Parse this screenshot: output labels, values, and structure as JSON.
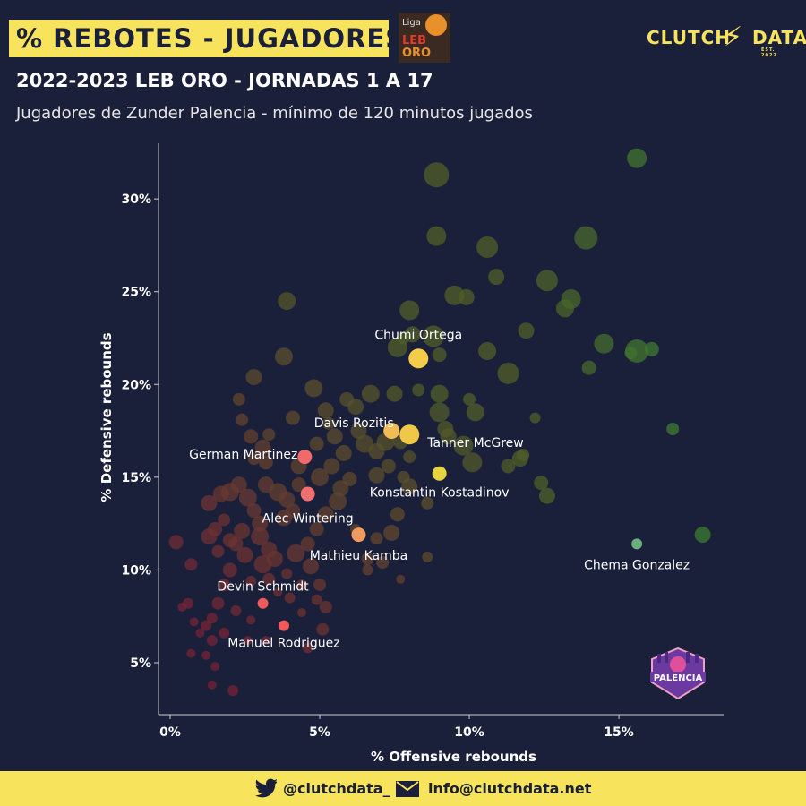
{
  "header": {
    "title": "% REBOTES - JUGADORES",
    "subtitle": "2022-2023 LEB ORO - JORNADAS 1 A 17",
    "description": "Jugadores de Zunder Palencia - mínimo de 120 minutos jugados",
    "league_logo": {
      "l1": "Liga",
      "l2": "LEB",
      "l3": "ORO"
    },
    "brand": {
      "left": "CLUTCH",
      "right": "DATA",
      "est": "EST. 2022"
    }
  },
  "footer": {
    "twitter": "@clutchdata_",
    "email": "info@clutchdata.net"
  },
  "team_logo": {
    "text": "PALENCIA"
  },
  "chart_data": {
    "type": "scatter",
    "xlabel": "% Offensive rebounds",
    "ylabel": "% Defensive rebounds",
    "xlim": [
      0,
      18.5
    ],
    "ylim": [
      2.2,
      33
    ],
    "x_ticks": [
      0,
      5,
      10,
      15
    ],
    "x_tick_labels": [
      "0%",
      "5%",
      "10%",
      "15%"
    ],
    "y_ticks": [
      5,
      10,
      15,
      20,
      25,
      30
    ],
    "y_tick_labels": [
      "5%",
      "10%",
      "15%",
      "20%",
      "25%",
      "30%"
    ],
    "grid": false,
    "highlighted": [
      {
        "name": "Chumi Ortega",
        "x": 8.3,
        "y": 21.4,
        "color": "#f2cc4a",
        "size": 11
      },
      {
        "name": "Davis Rozitis",
        "x": 7.4,
        "y": 17.5,
        "color": "#f2bc55",
        "size": 9
      },
      {
        "name": "Tanner McGrew",
        "x": 8.0,
        "y": 17.3,
        "color": "#f0c848",
        "size": 11
      },
      {
        "name": "German Martinez",
        "x": 4.5,
        "y": 16.1,
        "color": "#f06a6a",
        "size": 8
      },
      {
        "name": "Konstantin Kostadinov",
        "x": 9.0,
        "y": 15.2,
        "color": "#e8d440",
        "size": 8
      },
      {
        "name": "Alec Wintering",
        "x": 4.6,
        "y": 14.1,
        "color": "#f07070",
        "size": 8
      },
      {
        "name": "Mathieu Kamba",
        "x": 6.3,
        "y": 11.9,
        "color": "#f09a62",
        "size": 8
      },
      {
        "name": "Chema Gonzalez",
        "x": 15.6,
        "y": 11.4,
        "color": "#6ab07a",
        "size": 6
      },
      {
        "name": "Devin Schmidt",
        "x": 3.1,
        "y": 8.2,
        "color": "#f05a5a",
        "size": 6
      },
      {
        "name": "Manuel Rodriguez",
        "x": 3.8,
        "y": 7.0,
        "color": "#f05a5a",
        "size": 6
      }
    ],
    "others": [
      [
        15.6,
        32.2,
        11
      ],
      [
        8.9,
        31.3,
        14
      ],
      [
        8.9,
        28.0,
        11
      ],
      [
        10.6,
        27.4,
        12
      ],
      [
        13.9,
        27.9,
        13
      ],
      [
        10.9,
        25.8,
        9
      ],
      [
        12.6,
        25.6,
        12
      ],
      [
        13.4,
        24.6,
        11
      ],
      [
        13.2,
        24.1,
        10
      ],
      [
        9.5,
        24.8,
        11
      ],
      [
        9.9,
        24.7,
        9
      ],
      [
        8.0,
        24.0,
        11
      ],
      [
        8.8,
        22.6,
        12
      ],
      [
        8.1,
        22.7,
        9
      ],
      [
        7.8,
        22.5,
        7
      ],
      [
        7.6,
        22.0,
        11
      ],
      [
        9.0,
        21.6,
        8
      ],
      [
        10.6,
        21.8,
        10
      ],
      [
        11.9,
        22.9,
        9
      ],
      [
        14.5,
        22.2,
        11
      ],
      [
        15.6,
        21.8,
        13
      ],
      [
        16.1,
        21.9,
        8
      ],
      [
        15.4,
        21.7,
        7
      ],
      [
        14.0,
        20.9,
        8
      ],
      [
        11.3,
        20.6,
        12
      ],
      [
        3.9,
        24.5,
        10
      ],
      [
        3.8,
        21.5,
        10
      ],
      [
        2.8,
        20.4,
        9
      ],
      [
        4.8,
        19.8,
        10
      ],
      [
        5.2,
        18.6,
        9
      ],
      [
        5.9,
        19.2,
        8
      ],
      [
        6.2,
        18.8,
        9
      ],
      [
        6.7,
        19.5,
        10
      ],
      [
        7.5,
        19.5,
        9
      ],
      [
        8.3,
        19.7,
        7
      ],
      [
        9.0,
        19.5,
        10
      ],
      [
        10.0,
        19.2,
        7
      ],
      [
        10.2,
        18.5,
        10
      ],
      [
        9.2,
        17.6,
        9
      ],
      [
        9.0,
        18.5,
        11
      ],
      [
        9.3,
        17.2,
        9
      ],
      [
        9.8,
        16.7,
        11
      ],
      [
        10.1,
        15.8,
        11
      ],
      [
        11.3,
        15.6,
        8
      ],
      [
        11.7,
        16.0,
        9
      ],
      [
        11.8,
        16.2,
        7
      ],
      [
        12.2,
        18.2,
        6
      ],
      [
        12.4,
        14.7,
        8
      ],
      [
        12.6,
        14.0,
        9
      ],
      [
        16.8,
        17.6,
        7
      ],
      [
        17.8,
        11.9,
        9
      ],
      [
        4.1,
        18.2,
        8
      ],
      [
        5.3,
        17.9,
        7
      ],
      [
        6.3,
        17.5,
        9
      ],
      [
        6.5,
        16.8,
        10
      ],
      [
        6.9,
        16.4,
        9
      ],
      [
        7.2,
        16.9,
        10
      ],
      [
        7.7,
        16.9,
        8
      ],
      [
        8.0,
        16.1,
        7
      ],
      [
        7.3,
        15.6,
        8
      ],
      [
        6.9,
        15.1,
        9
      ],
      [
        7.8,
        15.0,
        7
      ],
      [
        8.0,
        14.5,
        9
      ],
      [
        8.6,
        13.6,
        7
      ],
      [
        7.6,
        13.0,
        8
      ],
      [
        7.4,
        12.0,
        9
      ],
      [
        6.9,
        11.7,
        7
      ],
      [
        6.6,
        10.6,
        7
      ],
      [
        6.6,
        10.0,
        6
      ],
      [
        7.1,
        10.4,
        7
      ],
      [
        7.7,
        9.5,
        5
      ],
      [
        8.6,
        10.7,
        6
      ],
      [
        6.2,
        12.2,
        6
      ],
      [
        5.6,
        13.7,
        10
      ],
      [
        5.2,
        13.0,
        9
      ],
      [
        4.9,
        12.2,
        8
      ],
      [
        4.6,
        11.4,
        8
      ],
      [
        4.2,
        10.9,
        10
      ],
      [
        4.7,
        10.2,
        9
      ],
      [
        5.0,
        9.2,
        7
      ],
      [
        4.9,
        8.4,
        6
      ],
      [
        5.2,
        8.0,
        7
      ],
      [
        5.1,
        6.8,
        7
      ],
      [
        4.6,
        5.8,
        6
      ],
      [
        3.5,
        10.6,
        9
      ],
      [
        3.3,
        11.1,
        9
      ],
      [
        3.1,
        10.3,
        10
      ],
      [
        3.0,
        11.8,
        10
      ],
      [
        3.0,
        12.5,
        9
      ],
      [
        2.8,
        13.2,
        8
      ],
      [
        2.6,
        13.9,
        10
      ],
      [
        2.3,
        14.6,
        9
      ],
      [
        2.4,
        12.1,
        9
      ],
      [
        2.2,
        11.4,
        8
      ],
      [
        2.5,
        10.8,
        9
      ],
      [
        2.0,
        11.6,
        8
      ],
      [
        1.8,
        12.7,
        7
      ],
      [
        1.6,
        11.0,
        7
      ],
      [
        1.5,
        12.2,
        8
      ],
      [
        1.3,
        11.8,
        9
      ],
      [
        2.0,
        10.0,
        8
      ],
      [
        1.8,
        9.2,
        7
      ],
      [
        1.6,
        8.2,
        7
      ],
      [
        1.4,
        7.4,
        6
      ],
      [
        1.2,
        7.0,
        6
      ],
      [
        1.0,
        6.6,
        5
      ],
      [
        0.8,
        7.2,
        5
      ],
      [
        0.6,
        8.2,
        6
      ],
      [
        0.4,
        8.0,
        5
      ],
      [
        0.7,
        10.3,
        7
      ],
      [
        0.2,
        11.5,
        8
      ],
      [
        1.3,
        13.6,
        9
      ],
      [
        1.7,
        14.1,
        9
      ],
      [
        2.0,
        14.2,
        10
      ],
      [
        3.2,
        14.6,
        9
      ],
      [
        3.6,
        14.2,
        10
      ],
      [
        3.9,
        13.8,
        9
      ],
      [
        4.1,
        13.2,
        8
      ],
      [
        3.8,
        12.8,
        9
      ],
      [
        4.3,
        14.6,
        8
      ],
      [
        5.0,
        15.0,
        10
      ],
      [
        5.4,
        15.6,
        9
      ],
      [
        5.7,
        14.4,
        9
      ],
      [
        6.0,
        14.9,
        8
      ],
      [
        5.8,
        16.3,
        9
      ],
      [
        5.5,
        17.2,
        9
      ],
      [
        4.9,
        16.8,
        8
      ],
      [
        4.3,
        15.6,
        9
      ],
      [
        3.2,
        15.8,
        8
      ],
      [
        3.1,
        16.6,
        9
      ],
      [
        2.7,
        17.2,
        8
      ],
      [
        2.4,
        18.1,
        7
      ],
      [
        2.3,
        19.2,
        7
      ],
      [
        2.8,
        16.0,
        7
      ],
      [
        3.3,
        17.3,
        7
      ],
      [
        1.4,
        6.2,
        6
      ],
      [
        1.5,
        4.8,
        5
      ],
      [
        1.4,
        3.8,
        5
      ],
      [
        2.1,
        3.5,
        6
      ],
      [
        0.7,
        5.5,
        5
      ],
      [
        1.2,
        5.4,
        5
      ],
      [
        1.8,
        6.6,
        6
      ],
      [
        2.6,
        6.2,
        5
      ],
      [
        2.2,
        7.8,
        6
      ],
      [
        2.7,
        7.3,
        5
      ],
      [
        3.2,
        6.2,
        5
      ],
      [
        4.0,
        8.5,
        6
      ],
      [
        4.4,
        7.7,
        5
      ],
      [
        3.6,
        8.8,
        5
      ],
      [
        3.3,
        9.5,
        7
      ],
      [
        3.9,
        9.8,
        6
      ],
      [
        4.4,
        9.2,
        6
      ],
      [
        2.7,
        9.4,
        6
      ]
    ]
  }
}
